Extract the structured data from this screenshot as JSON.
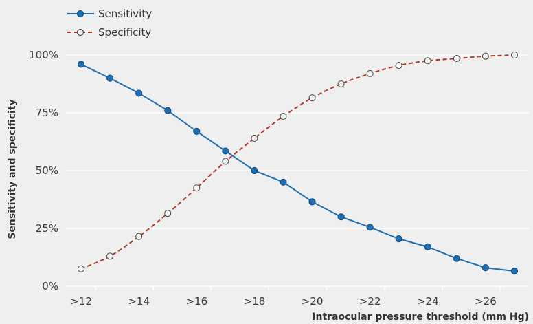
{
  "chart_data": {
    "type": "line",
    "title": "",
    "xlabel": "Intraocular pressure threshold (mm Hg)",
    "ylabel": "Sensitivity and specificity",
    "x": [
      12,
      13,
      14,
      15,
      16,
      17,
      18,
      19,
      20,
      21,
      22,
      23,
      24,
      25,
      26,
      27
    ],
    "x_tick_labels": [
      ">12",
      ">14",
      ">16",
      ">18",
      ">20",
      ">22",
      ">24",
      ">26"
    ],
    "x_tick_values": [
      12,
      14,
      16,
      18,
      20,
      22,
      24,
      26
    ],
    "xlim": [
      11.5,
      27.5
    ],
    "ylim": [
      0,
      100
    ],
    "y_ticks": [
      0,
      25,
      50,
      75,
      100
    ],
    "y_tick_labels": [
      "0%",
      "25%",
      "50%",
      "75%",
      "100%"
    ],
    "grid": "horizontal",
    "legend_position": "top-left",
    "series": [
      {
        "name": "Sensitivity",
        "style": "solid",
        "marker": "filled-circle",
        "color": "#1f6fb4",
        "values": [
          96,
          90,
          83.5,
          76,
          67,
          58.5,
          50,
          45,
          36.5,
          30,
          25.5,
          20.5,
          17,
          12,
          8,
          6.5
        ]
      },
      {
        "name": "Specificity",
        "style": "dashed",
        "marker": "open-circle",
        "color": "#b03a2e",
        "values": [
          7.5,
          13,
          21.5,
          31.5,
          42.5,
          54,
          64,
          73.5,
          81.5,
          87.5,
          92,
          95.5,
          97.5,
          98.5,
          99.5,
          100
        ]
      }
    ]
  }
}
